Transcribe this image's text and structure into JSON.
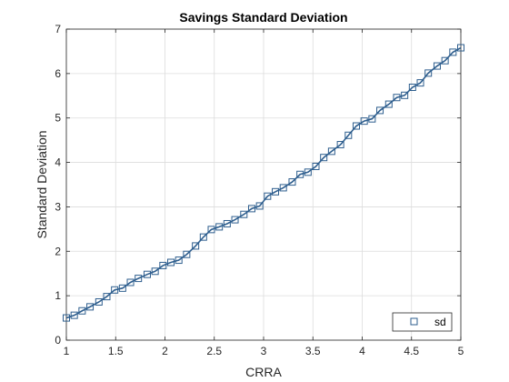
{
  "chart_data": {
    "type": "line",
    "title": "Savings Standard Deviation",
    "xlabel": "CRRA",
    "ylabel": "Standard Deviation",
    "xlim": [
      1,
      5
    ],
    "ylim": [
      0,
      7
    ],
    "xticks": [
      1,
      1.5,
      2,
      2.5,
      3,
      3.5,
      4,
      4.5,
      5
    ],
    "xtick_labels": [
      "1",
      "1.5",
      "2",
      "2.5",
      "3",
      "3.5",
      "4",
      "4.5",
      "5"
    ],
    "yticks": [
      0,
      1,
      2,
      3,
      4,
      5,
      6,
      7
    ],
    "ytick_labels": [
      "0",
      "1",
      "2",
      "3",
      "4",
      "5",
      "6",
      "7"
    ],
    "grid": true,
    "legend_position": "bottom-right",
    "series": [
      {
        "name": "sd",
        "color": "#2e5e8e",
        "marker": "square",
        "x": [
          1.0,
          1.08,
          1.16,
          1.24,
          1.33,
          1.41,
          1.49,
          1.57,
          1.65,
          1.73,
          1.82,
          1.9,
          1.98,
          2.06,
          2.14,
          2.22,
          2.31,
          2.39,
          2.47,
          2.55,
          2.63,
          2.71,
          2.8,
          2.88,
          2.96,
          3.04,
          3.12,
          3.2,
          3.29,
          3.37,
          3.45,
          3.53,
          3.61,
          3.69,
          3.78,
          3.86,
          3.94,
          4.02,
          4.1,
          4.18,
          4.27,
          4.35,
          4.43,
          4.51,
          4.59,
          4.67,
          4.76,
          4.84,
          4.92,
          5.0
        ],
        "values": [
          0.5,
          0.56,
          0.66,
          0.75,
          0.86,
          0.98,
          1.13,
          1.17,
          1.3,
          1.39,
          1.48,
          1.55,
          1.68,
          1.75,
          1.8,
          1.93,
          2.12,
          2.32,
          2.49,
          2.55,
          2.62,
          2.71,
          2.83,
          2.96,
          3.02,
          3.24,
          3.34,
          3.43,
          3.56,
          3.73,
          3.78,
          3.91,
          4.11,
          4.25,
          4.4,
          4.61,
          4.82,
          4.93,
          4.98,
          5.17,
          5.31,
          5.46,
          5.51,
          5.69,
          5.79,
          6.01,
          6.17,
          6.29,
          6.48,
          6.58
        ]
      }
    ]
  }
}
